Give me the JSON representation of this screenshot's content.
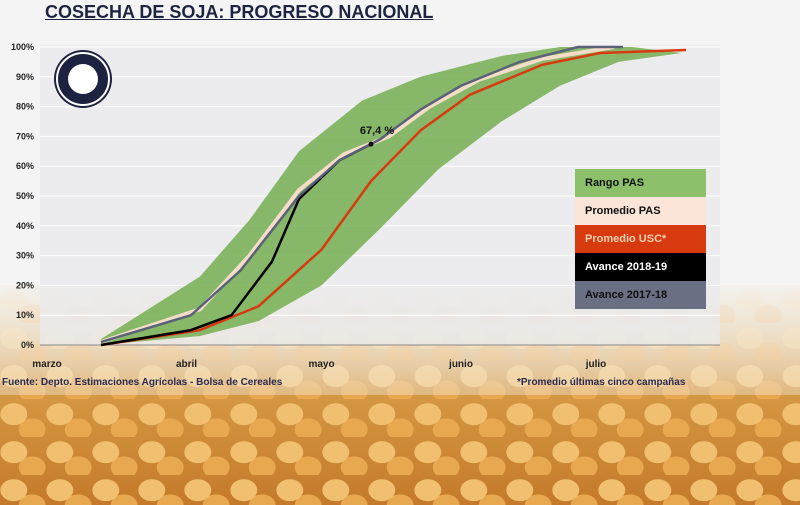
{
  "chart_data": {
    "type": "line",
    "title": "COSECHA DE SOJA: PROGRESO NACIONAL",
    "x_unit": "days since March 1",
    "xlim": [
      -2,
      150
    ],
    "ylim": [
      0,
      100
    ],
    "y_ticks": [
      "0%",
      "10%",
      "20%",
      "30%",
      "40%",
      "50%",
      "60%",
      "70%",
      "80%",
      "90%",
      "100%"
    ],
    "x_ticks": [
      {
        "label": "marzo",
        "x": 0
      },
      {
        "label": "abril",
        "x": 31
      },
      {
        "label": "mayo",
        "x": 61
      },
      {
        "label": "junio",
        "x": 92
      },
      {
        "label": "julio",
        "x": 122
      }
    ],
    "band": {
      "name": "Rango PAS",
      "color": "#7cb35a",
      "upper": [
        [
          12,
          2
        ],
        [
          34,
          23
        ],
        [
          45,
          42
        ],
        [
          56,
          65
        ],
        [
          70,
          82
        ],
        [
          83,
          90
        ],
        [
          101,
          97
        ],
        [
          114,
          100
        ],
        [
          130,
          100
        ]
      ],
      "lower": [
        [
          12,
          0
        ],
        [
          34,
          3
        ],
        [
          47,
          8
        ],
        [
          61,
          20
        ],
        [
          74,
          39
        ],
        [
          87,
          59
        ],
        [
          101,
          75
        ],
        [
          114,
          87
        ],
        [
          127,
          95
        ],
        [
          141,
          98
        ]
      ]
    },
    "series": [
      {
        "name": "Promedio PAS",
        "color": "#f5dcc8",
        "points": [
          [
            12,
            1
          ],
          [
            34,
            12
          ],
          [
            45,
            30
          ],
          [
            56,
            52
          ],
          [
            66,
            64
          ],
          [
            76,
            70
          ],
          [
            85,
            80
          ],
          [
            96,
            89
          ],
          [
            110,
            96
          ],
          [
            126,
            100
          ]
        ]
      },
      {
        "name": "Promedio USC*",
        "color": "#d83a10",
        "points": [
          [
            12,
            0
          ],
          [
            34,
            5
          ],
          [
            47,
            13
          ],
          [
            61,
            32
          ],
          [
            72,
            55
          ],
          [
            83,
            72
          ],
          [
            94,
            84
          ],
          [
            110,
            94
          ],
          [
            123,
            98
          ],
          [
            142,
            99
          ]
        ]
      },
      {
        "name": "Avance 2018-19",
        "color": "#000000",
        "points": [
          [
            12,
            0
          ],
          [
            32,
            5
          ],
          [
            41,
            10
          ],
          [
            50,
            28
          ],
          [
            56,
            49
          ],
          [
            65,
            62
          ],
          [
            72,
            67.4
          ]
        ]
      },
      {
        "name": "Avance 2017-18",
        "color": "#5a6278",
        "points": [
          [
            12,
            1
          ],
          [
            32,
            10
          ],
          [
            43,
            25
          ],
          [
            56,
            50
          ],
          [
            65,
            62
          ],
          [
            74,
            69
          ],
          [
            83,
            79
          ],
          [
            92,
            87
          ],
          [
            105,
            95
          ],
          [
            118,
            100
          ],
          [
            128,
            100
          ]
        ]
      }
    ],
    "annotation": "67,4 %",
    "legend_position": "right"
  },
  "footer": {
    "source": "Fuente: Depto. Estimaciones Agrícolas - Bolsa de Cereales",
    "note": "*Promedio últimas cinco campañas"
  }
}
